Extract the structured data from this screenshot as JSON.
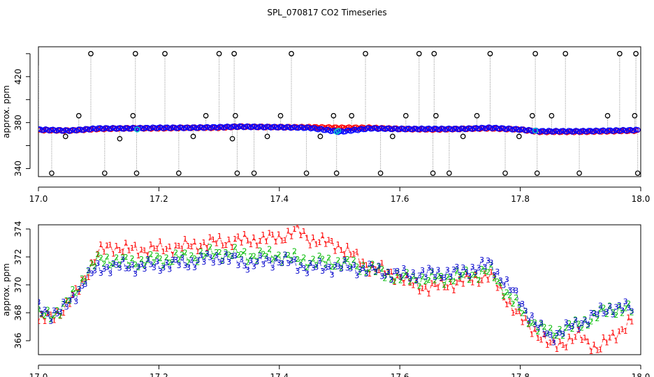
{
  "figure": {
    "title": "SPL_070817  CO2 Timeseries"
  },
  "chart_data": [
    {
      "type": "scatter",
      "panel": "top",
      "title": "",
      "xlabel": "",
      "ylabel": "approx. ppm",
      "xlim": [
        17.0,
        18.0
      ],
      "ylim": [
        333,
        446
      ],
      "xticks": [
        17.0,
        17.2,
        17.4,
        17.6,
        17.8,
        18.0
      ],
      "x_tick_labels": [
        "17.0",
        "17.2",
        "17.4",
        "17.6",
        "17.8",
        "18.0"
      ],
      "yticks": [
        340,
        360,
        380,
        400,
        420,
        440
      ],
      "y_tick_labels": [
        "340",
        "",
        "380",
        "",
        "420",
        ""
      ],
      "grid": false,
      "series": [
        {
          "name": "trace (red)",
          "color": "#ff0000",
          "x": [
            17.0,
            17.05,
            17.1,
            17.15,
            17.2,
            17.25,
            17.3,
            17.33,
            17.4,
            17.45,
            17.5,
            17.55,
            17.6,
            17.66,
            17.7,
            17.75,
            17.8,
            17.83,
            17.9,
            17.95,
            17.99
          ],
          "y": [
            373.5,
            373,
            374.5,
            375,
            375,
            375.5,
            375.5,
            376.5,
            376,
            376,
            375.5,
            375.5,
            374.5,
            374,
            374.5,
            375,
            374,
            372,
            372,
            372.5,
            373
          ]
        },
        {
          "name": "trace (blue)",
          "color": "#0000ff",
          "x": [
            17.0,
            17.05,
            17.1,
            17.15,
            17.2,
            17.25,
            17.3,
            17.33,
            17.4,
            17.45,
            17.5,
            17.55,
            17.6,
            17.66,
            17.7,
            17.75,
            17.8,
            17.83,
            17.9,
            17.95,
            17.99
          ],
          "y": [
            374,
            373,
            375,
            375,
            375.5,
            375.5,
            376,
            376.5,
            376,
            375.5,
            372,
            375,
            374.5,
            374.5,
            374.5,
            375.5,
            374,
            372.5,
            372.5,
            373,
            373.5
          ]
        },
        {
          "name": "spike markers (open circles)",
          "color": "#000000",
          "x": [
            17.022,
            17.045,
            17.067,
            17.087,
            17.11,
            17.135,
            17.157,
            17.161,
            17.163,
            17.21,
            17.233,
            17.257,
            17.278,
            17.3,
            17.322,
            17.325,
            17.327,
            17.33,
            17.358,
            17.38,
            17.402,
            17.42,
            17.445,
            17.468,
            17.49,
            17.495,
            17.52,
            17.543,
            17.568,
            17.588,
            17.61,
            17.632,
            17.655,
            17.657,
            17.66,
            17.682,
            17.705,
            17.728,
            17.75,
            17.775,
            17.798,
            17.82,
            17.825,
            17.828,
            17.852,
            17.875,
            17.898,
            17.945,
            17.965,
            17.99,
            17.992,
            17.995
          ],
          "y": [
            336,
            368,
            386,
            440,
            336,
            366,
            386,
            440,
            336,
            440,
            336,
            368,
            386,
            440,
            366,
            440,
            386,
            336,
            336,
            368,
            386,
            440,
            336,
            368,
            386,
            336,
            386,
            440,
            336,
            368,
            386,
            440,
            336,
            440,
            386,
            336,
            368,
            386,
            440,
            336,
            368,
            386,
            440,
            336,
            386,
            440,
            336,
            386,
            440,
            386,
            440,
            336
          ]
        }
      ]
    },
    {
      "type": "scatter",
      "panel": "bottom",
      "title": "",
      "xlabel": "",
      "ylabel": "approx. ppm",
      "xlim": [
        17.0,
        18.0
      ],
      "ylim": [
        365,
        374.3
      ],
      "xticks": [
        17.0,
        17.2,
        17.4,
        17.6,
        17.8,
        18.0
      ],
      "x_tick_labels": [
        "17.0",
        "17.2",
        "17.4",
        "17.6",
        "17.8",
        "18.0"
      ],
      "yticks": [
        366,
        368,
        370,
        372,
        374
      ],
      "y_tick_labels": [
        "366",
        "368",
        "370",
        "372",
        "374"
      ],
      "grid": false,
      "series": [
        {
          "name": "1",
          "marker": "1",
          "color": "#ff0000",
          "x": [
            17.0,
            17.02,
            17.04,
            17.06,
            17.08,
            17.1,
            17.12,
            17.15,
            17.2,
            17.25,
            17.3,
            17.35,
            17.4,
            17.43,
            17.45,
            17.5,
            17.55,
            17.6,
            17.62,
            17.65,
            17.7,
            17.75,
            17.8,
            17.83,
            17.85,
            17.9,
            17.93,
            17.98
          ],
          "y": [
            367.4,
            367.7,
            368.2,
            369.2,
            370.8,
            372.3,
            372.8,
            372.5,
            372.6,
            372.8,
            373.1,
            373.2,
            373.4,
            373.9,
            373.3,
            372.8,
            371.3,
            370.6,
            370,
            369.8,
            370.2,
            370.7,
            367.6,
            366.5,
            365.6,
            366.3,
            365.4,
            367.3
          ]
        },
        {
          "name": "2",
          "marker": "2",
          "color": "#00bb00",
          "x": [
            17.0,
            17.02,
            17.04,
            17.06,
            17.08,
            17.1,
            17.12,
            17.15,
            17.2,
            17.25,
            17.3,
            17.35,
            17.4,
            17.45,
            17.5,
            17.55,
            17.6,
            17.65,
            17.7,
            17.75,
            17.8,
            17.83,
            17.85,
            17.9,
            17.95,
            17.98
          ],
          "y": [
            367.8,
            367.9,
            368.3,
            369.4,
            370.9,
            371.8,
            371.8,
            371.6,
            371.8,
            372.0,
            372.3,
            372.1,
            372.1,
            371.7,
            371.6,
            371.2,
            370.5,
            370.4,
            370.6,
            371.0,
            368.2,
            367.0,
            366.5,
            367.2,
            368.3,
            368.2
          ]
        },
        {
          "name": "3",
          "marker": "3",
          "color": "#0000cc",
          "x": [
            17.0,
            17.02,
            17.04,
            17.06,
            17.08,
            17.1,
            17.12,
            17.15,
            17.2,
            17.25,
            17.3,
            17.35,
            17.4,
            17.45,
            17.5,
            17.55,
            17.6,
            17.65,
            17.7,
            17.75,
            17.8,
            17.83,
            17.85,
            17.9,
            17.95,
            17.98
          ],
          "y": [
            368.3,
            367.9,
            368.2,
            369.2,
            370.5,
            371.2,
            371.3,
            371.3,
            371.4,
            371.6,
            372.0,
            371.5,
            371.8,
            371.2,
            371.3,
            371.1,
            370.7,
            370.8,
            370.9,
            371.5,
            368.8,
            366.9,
            366.3,
            367.3,
            368.4,
            368.3
          ]
        }
      ]
    }
  ]
}
